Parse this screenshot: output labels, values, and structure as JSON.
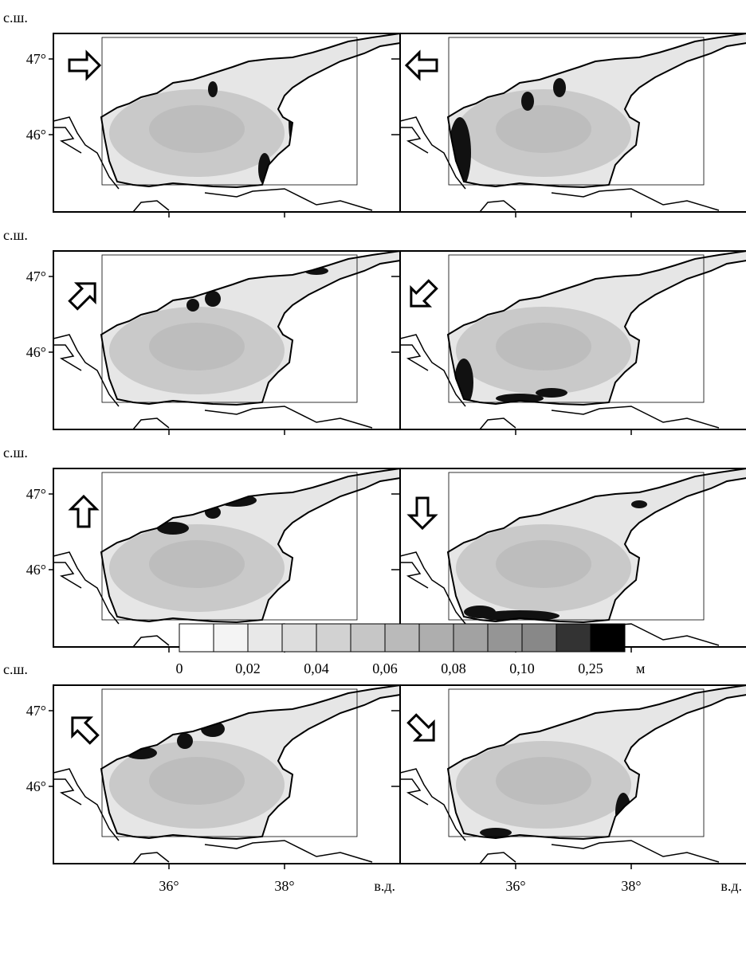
{
  "axes": {
    "lat_unit": "с.ш.",
    "lat_ticks": [
      "47°",
      "46°"
    ],
    "lon_ticks": [
      "36°",
      "38°"
    ],
    "lon_unit": "в.д."
  },
  "colorbar": {
    "labels": [
      "0",
      "0,02",
      "0,04",
      "0,06",
      "0,08",
      "0,10",
      "0,25"
    ],
    "unit": "м",
    "colors": [
      "#ffffff",
      "#f4f4f4",
      "#e8e8e8",
      "#dddddd",
      "#d2d2d2",
      "#c6c6c6",
      "#bababa",
      "#aeaeae",
      "#a2a2a2",
      "#959595",
      "#888888",
      "#333333",
      "#000000"
    ]
  }
}
